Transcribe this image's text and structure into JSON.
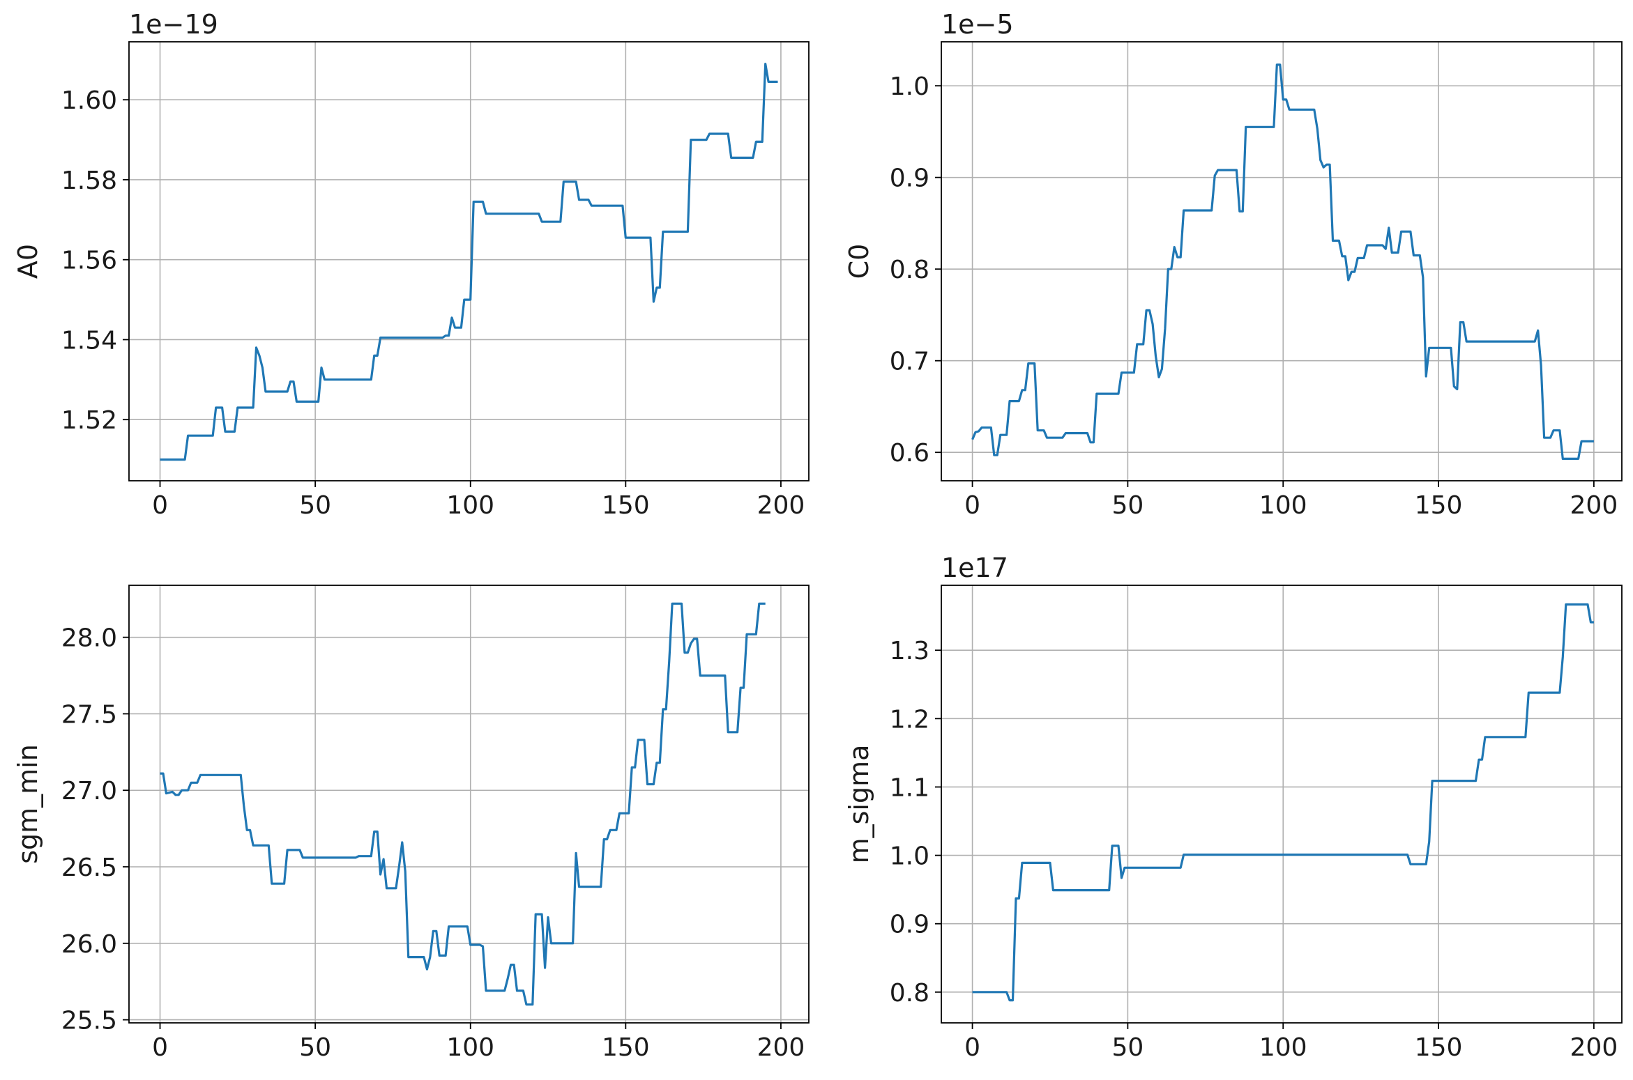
{
  "figure": {
    "line_color": "#1f77b4",
    "grid_color": "#b0b0b0",
    "grid": true
  },
  "chart_data": [
    {
      "type": "line",
      "panel": "top-left",
      "ylabel": "A0",
      "xlabel": "",
      "offset_text": "1e−19",
      "y_scale_exponent": -19,
      "xlim": [
        -10,
        209
      ],
      "ylim": [
        1.5047,
        1.6145
      ],
      "xticks": [
        0,
        50,
        100,
        150,
        200
      ],
      "xtick_labels": [
        "0",
        "50",
        "100",
        "150",
        "200"
      ],
      "yticks": [
        1.52,
        1.54,
        1.56,
        1.58,
        1.6
      ],
      "ytick_labels": [
        "1.52",
        "1.54",
        "1.56",
        "1.58",
        "1.60"
      ],
      "points": [
        [
          0,
          1.51
        ],
        [
          8,
          1.51
        ],
        [
          9,
          1.516
        ],
        [
          17,
          1.516
        ],
        [
          18,
          1.523
        ],
        [
          20,
          1.523
        ],
        [
          21,
          1.517
        ],
        [
          24,
          1.517
        ],
        [
          25,
          1.523
        ],
        [
          30,
          1.523
        ],
        [
          31,
          1.538
        ],
        [
          32,
          1.536
        ],
        [
          33,
          1.533
        ],
        [
          34,
          1.527
        ],
        [
          41,
          1.527
        ],
        [
          42,
          1.5295
        ],
        [
          43,
          1.5295
        ],
        [
          44,
          1.5245
        ],
        [
          51,
          1.5245
        ],
        [
          52,
          1.533
        ],
        [
          53,
          1.53
        ],
        [
          68,
          1.53
        ],
        [
          69,
          1.536
        ],
        [
          70,
          1.536
        ],
        [
          71,
          1.5405
        ],
        [
          91,
          1.5405
        ],
        [
          92,
          1.541
        ],
        [
          93,
          1.541
        ],
        [
          94,
          1.5455
        ],
        [
          95,
          1.543
        ],
        [
          97,
          1.543
        ],
        [
          98,
          1.55
        ],
        [
          100,
          1.55
        ],
        [
          101,
          1.5745
        ],
        [
          104,
          1.5745
        ],
        [
          105,
          1.5715
        ],
        [
          122,
          1.5715
        ],
        [
          123,
          1.5695
        ],
        [
          129,
          1.5695
        ],
        [
          130,
          1.5795
        ],
        [
          134,
          1.5795
        ],
        [
          135,
          1.575
        ],
        [
          138,
          1.575
        ],
        [
          139,
          1.5735
        ],
        [
          149,
          1.5735
        ],
        [
          150,
          1.5655
        ],
        [
          158,
          1.5655
        ],
        [
          159,
          1.5495
        ],
        [
          160,
          1.553
        ],
        [
          161,
          1.553
        ],
        [
          162,
          1.567
        ],
        [
          170,
          1.567
        ],
        [
          171,
          1.59
        ],
        [
          176,
          1.59
        ],
        [
          177,
          1.5915
        ],
        [
          183,
          1.5915
        ],
        [
          184,
          1.5855
        ],
        [
          191,
          1.5855
        ],
        [
          192,
          1.5895
        ],
        [
          194,
          1.5895
        ],
        [
          195,
          1.609
        ],
        [
          196,
          1.6045
        ],
        [
          199,
          1.6045
        ]
      ]
    },
    {
      "type": "line",
      "panel": "top-right",
      "ylabel": "C0",
      "xlabel": "",
      "offset_text": "1e−5",
      "y_scale_exponent": -5,
      "xlim": [
        -10,
        209
      ],
      "ylim": [
        0.569,
        1.048
      ],
      "xticks": [
        0,
        50,
        100,
        150,
        200
      ],
      "xtick_labels": [
        "0",
        "50",
        "100",
        "150",
        "200"
      ],
      "yticks": [
        0.6,
        0.7,
        0.8,
        0.9,
        1.0
      ],
      "ytick_labels": [
        "0.6",
        "0.7",
        "0.8",
        "0.9",
        "1.0"
      ],
      "points": [
        [
          0,
          0.614
        ],
        [
          1,
          0.622
        ],
        [
          2,
          0.623
        ],
        [
          3,
          0.627
        ],
        [
          6,
          0.627
        ],
        [
          7,
          0.597
        ],
        [
          8,
          0.597
        ],
        [
          9,
          0.619
        ],
        [
          11,
          0.619
        ],
        [
          12,
          0.656
        ],
        [
          15,
          0.656
        ],
        [
          16,
          0.668
        ],
        [
          17,
          0.668
        ],
        [
          18,
          0.697
        ],
        [
          20,
          0.697
        ],
        [
          21,
          0.624
        ],
        [
          23,
          0.624
        ],
        [
          24,
          0.616
        ],
        [
          29,
          0.616
        ],
        [
          30,
          0.621
        ],
        [
          37,
          0.621
        ],
        [
          38,
          0.611
        ],
        [
          39,
          0.611
        ],
        [
          40,
          0.664
        ],
        [
          47,
          0.664
        ],
        [
          48,
          0.687
        ],
        [
          52,
          0.687
        ],
        [
          53,
          0.718
        ],
        [
          55,
          0.718
        ],
        [
          56,
          0.755
        ],
        [
          57,
          0.755
        ],
        [
          58,
          0.74
        ],
        [
          59,
          0.705
        ],
        [
          60,
          0.682
        ],
        [
          61,
          0.691
        ],
        [
          62,
          0.735
        ],
        [
          63,
          0.8
        ],
        [
          64,
          0.8
        ],
        [
          65,
          0.824
        ],
        [
          66,
          0.813
        ],
        [
          67,
          0.813
        ],
        [
          68,
          0.864
        ],
        [
          77,
          0.864
        ],
        [
          78,
          0.902
        ],
        [
          79,
          0.908
        ],
        [
          85,
          0.908
        ],
        [
          86,
          0.863
        ],
        [
          87,
          0.863
        ],
        [
          88,
          0.955
        ],
        [
          97,
          0.955
        ],
        [
          98,
          1.023
        ],
        [
          99,
          1.023
        ],
        [
          100,
          0.985
        ],
        [
          101,
          0.985
        ],
        [
          102,
          0.974
        ],
        [
          110,
          0.974
        ],
        [
          111,
          0.953
        ],
        [
          112,
          0.919
        ],
        [
          113,
          0.911
        ],
        [
          114,
          0.914
        ],
        [
          115,
          0.914
        ],
        [
          116,
          0.831
        ],
        [
          118,
          0.831
        ],
        [
          119,
          0.814
        ],
        [
          120,
          0.814
        ],
        [
          121,
          0.788
        ],
        [
          122,
          0.797
        ],
        [
          123,
          0.797
        ],
        [
          124,
          0.812
        ],
        [
          126,
          0.812
        ],
        [
          127,
          0.826
        ],
        [
          132,
          0.826
        ],
        [
          133,
          0.822
        ],
        [
          134,
          0.845
        ],
        [
          135,
          0.818
        ],
        [
          137,
          0.818
        ],
        [
          138,
          0.841
        ],
        [
          141,
          0.841
        ],
        [
          142,
          0.815
        ],
        [
          144,
          0.815
        ],
        [
          145,
          0.791
        ],
        [
          146,
          0.683
        ],
        [
          147,
          0.714
        ],
        [
          154,
          0.714
        ],
        [
          155,
          0.672
        ],
        [
          156,
          0.669
        ],
        [
          157,
          0.742
        ],
        [
          158,
          0.742
        ],
        [
          159,
          0.721
        ],
        [
          181,
          0.721
        ],
        [
          182,
          0.733
        ],
        [
          183,
          0.695
        ],
        [
          184,
          0.616
        ],
        [
          186,
          0.616
        ],
        [
          187,
          0.624
        ],
        [
          189,
          0.624
        ],
        [
          190,
          0.593
        ],
        [
          195,
          0.593
        ],
        [
          196,
          0.612
        ],
        [
          200,
          0.612
        ]
      ]
    },
    {
      "type": "line",
      "panel": "bottom-left",
      "ylabel": "sgm_min",
      "xlabel": "",
      "offset_text": "",
      "xlim": [
        -10,
        209
      ],
      "ylim": [
        25.48,
        28.34
      ],
      "xticks": [
        0,
        50,
        100,
        150,
        200
      ],
      "xtick_labels": [
        "0",
        "50",
        "100",
        "150",
        "200"
      ],
      "yticks": [
        25.5,
        26.0,
        26.5,
        27.0,
        27.5,
        28.0
      ],
      "ytick_labels": [
        "25.5",
        "26.0",
        "26.5",
        "27.0",
        "27.5",
        "28.0"
      ],
      "points": [
        [
          0,
          27.11
        ],
        [
          1,
          27.11
        ],
        [
          2,
          26.98
        ],
        [
          4,
          26.99
        ],
        [
          5,
          26.97
        ],
        [
          6,
          26.97
        ],
        [
          7,
          27.0
        ],
        [
          9,
          27.0
        ],
        [
          10,
          27.05
        ],
        [
          12,
          27.05
        ],
        [
          13,
          27.1
        ],
        [
          26,
          27.1
        ],
        [
          27,
          26.9
        ],
        [
          28,
          26.74
        ],
        [
          29,
          26.74
        ],
        [
          30,
          26.64
        ],
        [
          35,
          26.64
        ],
        [
          36,
          26.39
        ],
        [
          40,
          26.39
        ],
        [
          41,
          26.61
        ],
        [
          45,
          26.61
        ],
        [
          46,
          26.56
        ],
        [
          63,
          26.56
        ],
        [
          64,
          26.57
        ],
        [
          68,
          26.57
        ],
        [
          69,
          26.73
        ],
        [
          70,
          26.73
        ],
        [
          71,
          26.45
        ],
        [
          72,
          26.55
        ],
        [
          73,
          26.36
        ],
        [
          76,
          26.36
        ],
        [
          77,
          26.5
        ],
        [
          78,
          26.66
        ],
        [
          79,
          26.47
        ],
        [
          80,
          25.91
        ],
        [
          85,
          25.91
        ],
        [
          86,
          25.83
        ],
        [
          87,
          25.91
        ],
        [
          88,
          26.08
        ],
        [
          89,
          26.08
        ],
        [
          90,
          25.92
        ],
        [
          92,
          25.92
        ],
        [
          93,
          26.11
        ],
        [
          99,
          26.11
        ],
        [
          100,
          25.99
        ],
        [
          103,
          25.99
        ],
        [
          104,
          25.98
        ],
        [
          105,
          25.69
        ],
        [
          111,
          25.69
        ],
        [
          112,
          25.77
        ],
        [
          113,
          25.86
        ],
        [
          114,
          25.86
        ],
        [
          115,
          25.69
        ],
        [
          117,
          25.69
        ],
        [
          118,
          25.6
        ],
        [
          120,
          25.6
        ],
        [
          121,
          26.19
        ],
        [
          123,
          26.19
        ],
        [
          124,
          25.84
        ],
        [
          125,
          26.17
        ],
        [
          126,
          26.0
        ],
        [
          133,
          26.0
        ],
        [
          134,
          26.59
        ],
        [
          135,
          26.37
        ],
        [
          136,
          26.37
        ],
        [
          142,
          26.37
        ],
        [
          143,
          26.68
        ],
        [
          144,
          26.68
        ],
        [
          145,
          26.74
        ],
        [
          147,
          26.74
        ],
        [
          148,
          26.85
        ],
        [
          151,
          26.85
        ],
        [
          152,
          27.15
        ],
        [
          153,
          27.15
        ],
        [
          154,
          27.33
        ],
        [
          156,
          27.33
        ],
        [
          157,
          27.04
        ],
        [
          159,
          27.04
        ],
        [
          160,
          27.18
        ],
        [
          161,
          27.18
        ],
        [
          162,
          27.53
        ],
        [
          163,
          27.53
        ],
        [
          164,
          27.84
        ],
        [
          165,
          28.22
        ],
        [
          168,
          28.22
        ],
        [
          169,
          27.9
        ],
        [
          170,
          27.9
        ],
        [
          171,
          27.96
        ],
        [
          172,
          27.99
        ],
        [
          173,
          27.99
        ],
        [
          174,
          27.75
        ],
        [
          182,
          27.75
        ],
        [
          183,
          27.38
        ],
        [
          186,
          27.38
        ],
        [
          187,
          27.67
        ],
        [
          188,
          27.67
        ],
        [
          189,
          28.02
        ],
        [
          192,
          28.02
        ],
        [
          193,
          28.22
        ],
        [
          195,
          28.22
        ]
      ]
    },
    {
      "type": "line",
      "panel": "bottom-right",
      "ylabel": "m_sigma",
      "xlabel": "",
      "offset_text": "1e17",
      "y_scale_exponent": 17,
      "xlim": [
        -10,
        209
      ],
      "ylim": [
        0.755,
        1.395
      ],
      "xticks": [
        0,
        50,
        100,
        150,
        200
      ],
      "xtick_labels": [
        "0",
        "50",
        "100",
        "150",
        "200"
      ],
      "yticks": [
        0.8,
        0.9,
        1.0,
        1.1,
        1.2,
        1.3
      ],
      "ytick_labels": [
        "0.8",
        "0.9",
        "1.0",
        "1.1",
        "1.2",
        "1.3"
      ],
      "points": [
        [
          0,
          0.8
        ],
        [
          11,
          0.8
        ],
        [
          12,
          0.788
        ],
        [
          13,
          0.788
        ],
        [
          14,
          0.937
        ],
        [
          15,
          0.937
        ],
        [
          16,
          0.989
        ],
        [
          25,
          0.989
        ],
        [
          26,
          0.949
        ],
        [
          44,
          0.949
        ],
        [
          45,
          1.014
        ],
        [
          47,
          1.014
        ],
        [
          48,
          0.967
        ],
        [
          49,
          0.982
        ],
        [
          67,
          0.982
        ],
        [
          68,
          1.001
        ],
        [
          140,
          1.001
        ],
        [
          141,
          0.987
        ],
        [
          146,
          0.987
        ],
        [
          147,
          1.02
        ],
        [
          148,
          1.109
        ],
        [
          162,
          1.109
        ],
        [
          163,
          1.14
        ],
        [
          164,
          1.14
        ],
        [
          165,
          1.173
        ],
        [
          178,
          1.173
        ],
        [
          179,
          1.238
        ],
        [
          189,
          1.238
        ],
        [
          190,
          1.29
        ],
        [
          191,
          1.367
        ],
        [
          198,
          1.367
        ],
        [
          199,
          1.341
        ],
        [
          200,
          1.341
        ]
      ]
    }
  ]
}
